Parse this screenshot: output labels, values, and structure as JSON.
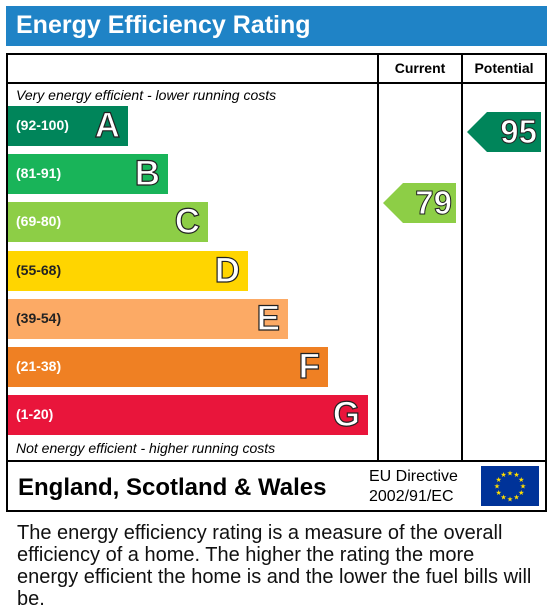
{
  "title": "Energy Efficiency Rating",
  "columns": {
    "current": "Current",
    "potential": "Potential"
  },
  "notes": {
    "top": "Very energy efficient - lower running costs",
    "bottom": "Not energy efficient - higher running costs"
  },
  "chart_data": {
    "type": "bar",
    "categories": [
      "A",
      "B",
      "C",
      "D",
      "E",
      "F",
      "G"
    ],
    "bands": [
      {
        "letter": "A",
        "range": "(92-100)",
        "min": 92,
        "max": 100,
        "color": "#00855a"
      },
      {
        "letter": "B",
        "range": "(81-91)",
        "min": 81,
        "max": 91,
        "color": "#19b459"
      },
      {
        "letter": "C",
        "range": "(69-80)",
        "min": 69,
        "max": 80,
        "color": "#8dce46"
      },
      {
        "letter": "D",
        "range": "(55-68)",
        "min": 55,
        "max": 68,
        "color": "#ffd500"
      },
      {
        "letter": "E",
        "range": "(39-54)",
        "min": 39,
        "max": 54,
        "color": "#fcaa65"
      },
      {
        "letter": "F",
        "range": "(21-38)",
        "min": 21,
        "max": 38,
        "color": "#ef8023"
      },
      {
        "letter": "G",
        "range": "(1-20)",
        "min": 1,
        "max": 20,
        "color": "#e9153b"
      }
    ],
    "ratings": [
      {
        "column": "Current",
        "value": 79,
        "band": "C",
        "color": "#8dce46"
      },
      {
        "column": "Potential",
        "value": 95,
        "band": "A",
        "color": "#00855a"
      }
    ]
  },
  "footer": {
    "country": "England, Scotland & Wales",
    "directive_line1": "EU Directive",
    "directive_line2": "2002/91/EC",
    "flag_icon": "eu-flag-icon",
    "flag_color": "#003399",
    "star_color": "#ffdd00"
  },
  "description": "The energy efficiency rating is a measure of the overall efficiency of a home. The higher the rating the more energy efficient the home is and the lower the fuel bills will be."
}
